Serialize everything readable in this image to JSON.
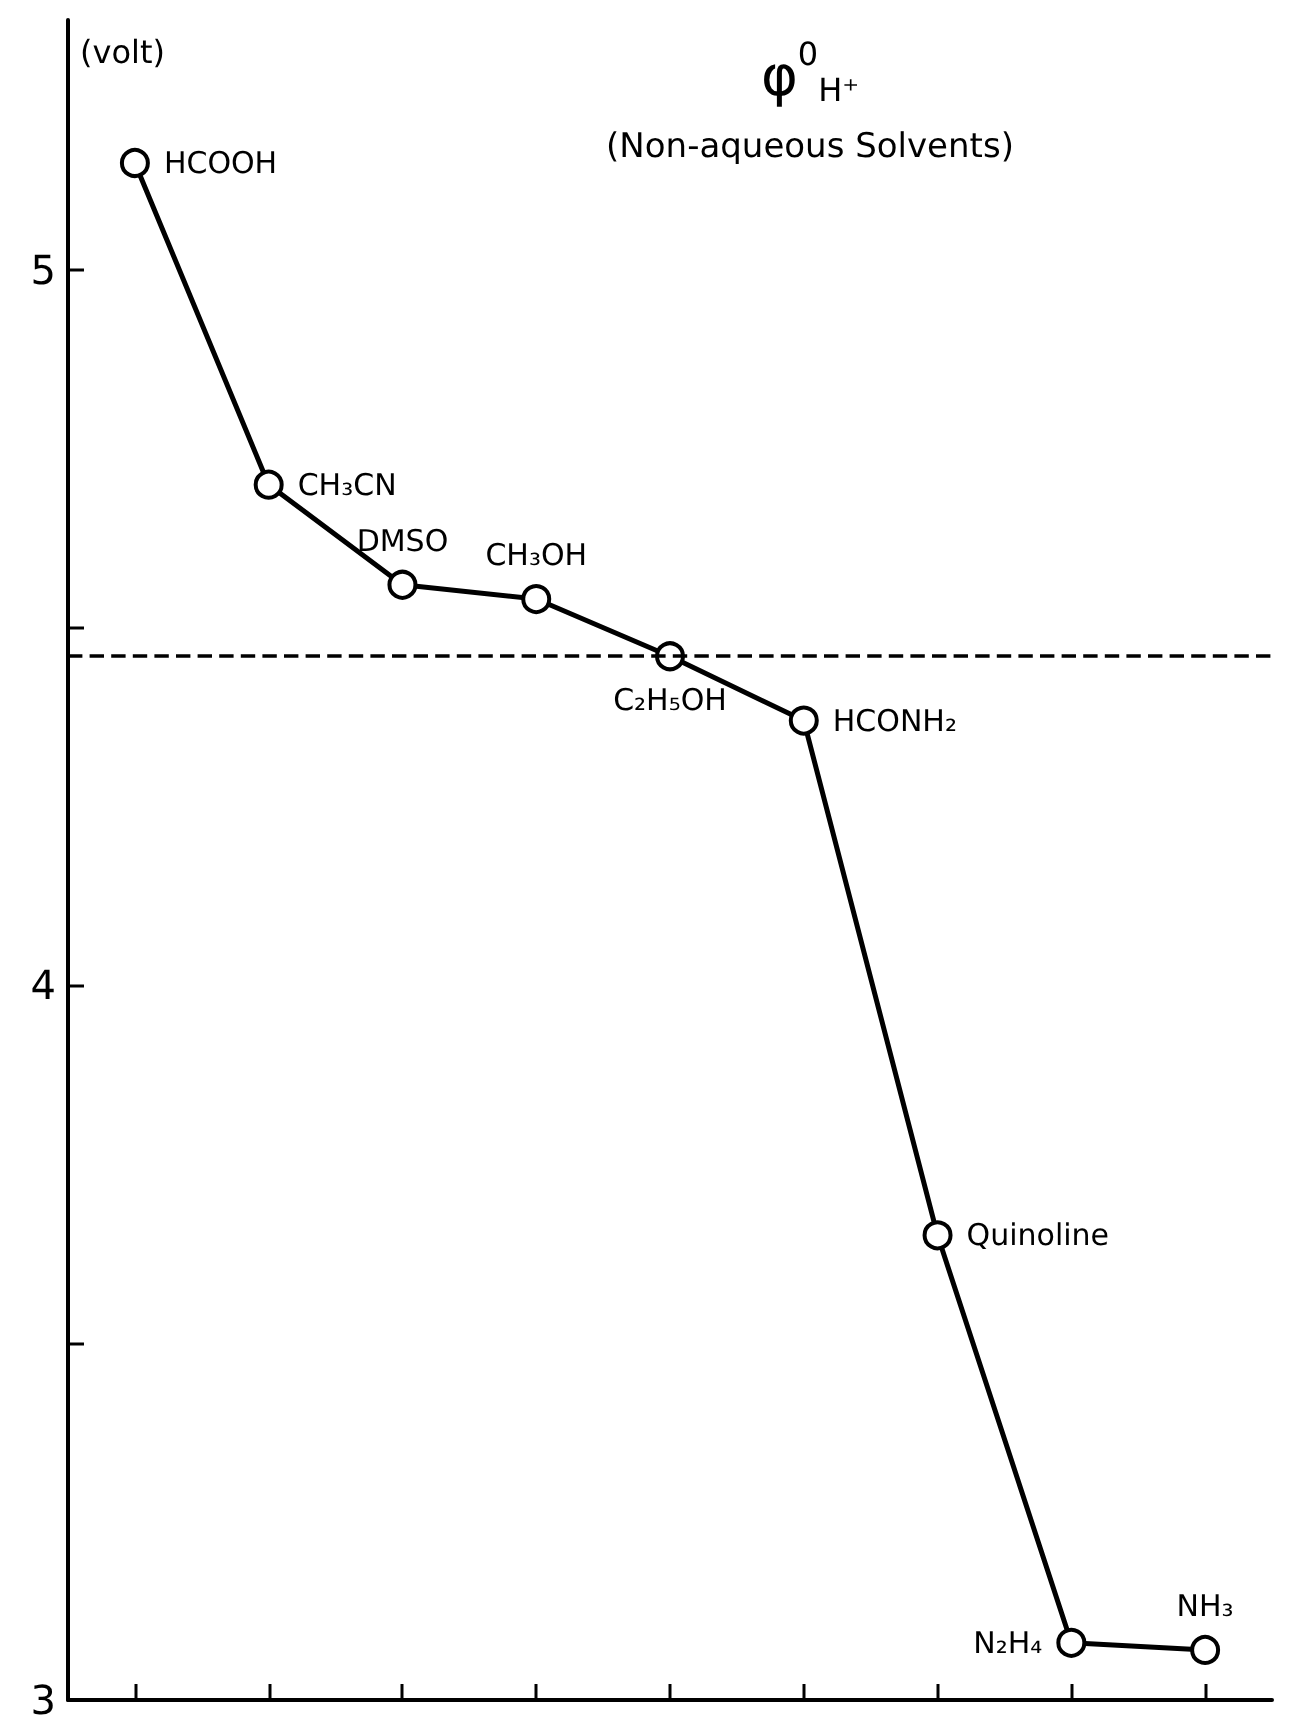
{
  "chart_data": {
    "type": "line",
    "title": "φ$^{0}$$_{H⁺}$",
    "subtitle": "(Non-aqueous Solvents)",
    "ylabel": "(volt)",
    "categories": [
      null,
      null,
      null,
      null,
      null,
      null,
      null,
      null,
      null
    ],
    "series": [
      {
        "color": "#000000",
        "values": [
          5.15,
          4.7,
          4.56,
          4.54,
          4.46,
          4.37,
          3.65,
          3.08,
          3.07
        ],
        "value_labels": [
          "HCOOH",
          "CH₃CN",
          "DMSO",
          "CH₃OH",
          "C₂H₅OH",
          "HCONH₂",
          "Quinoline",
          "N₂H₄",
          "NH₃"
        ]
      }
    ],
    "ylim": [
      3,
      5.35
    ],
    "yticks": [
      3,
      {
        "value": 3.5,
        "label": null
      },
      4,
      {
        "value": 4.5,
        "label": null
      },
      5
    ],
    "ref_lines": [
      {
        "axis": "y",
        "value": 4.46,
        "line_style": "dashed",
        "color": "#000000"
      }
    ],
    "grid": false,
    "marker": "circle",
    "line_style": "solid"
  }
}
